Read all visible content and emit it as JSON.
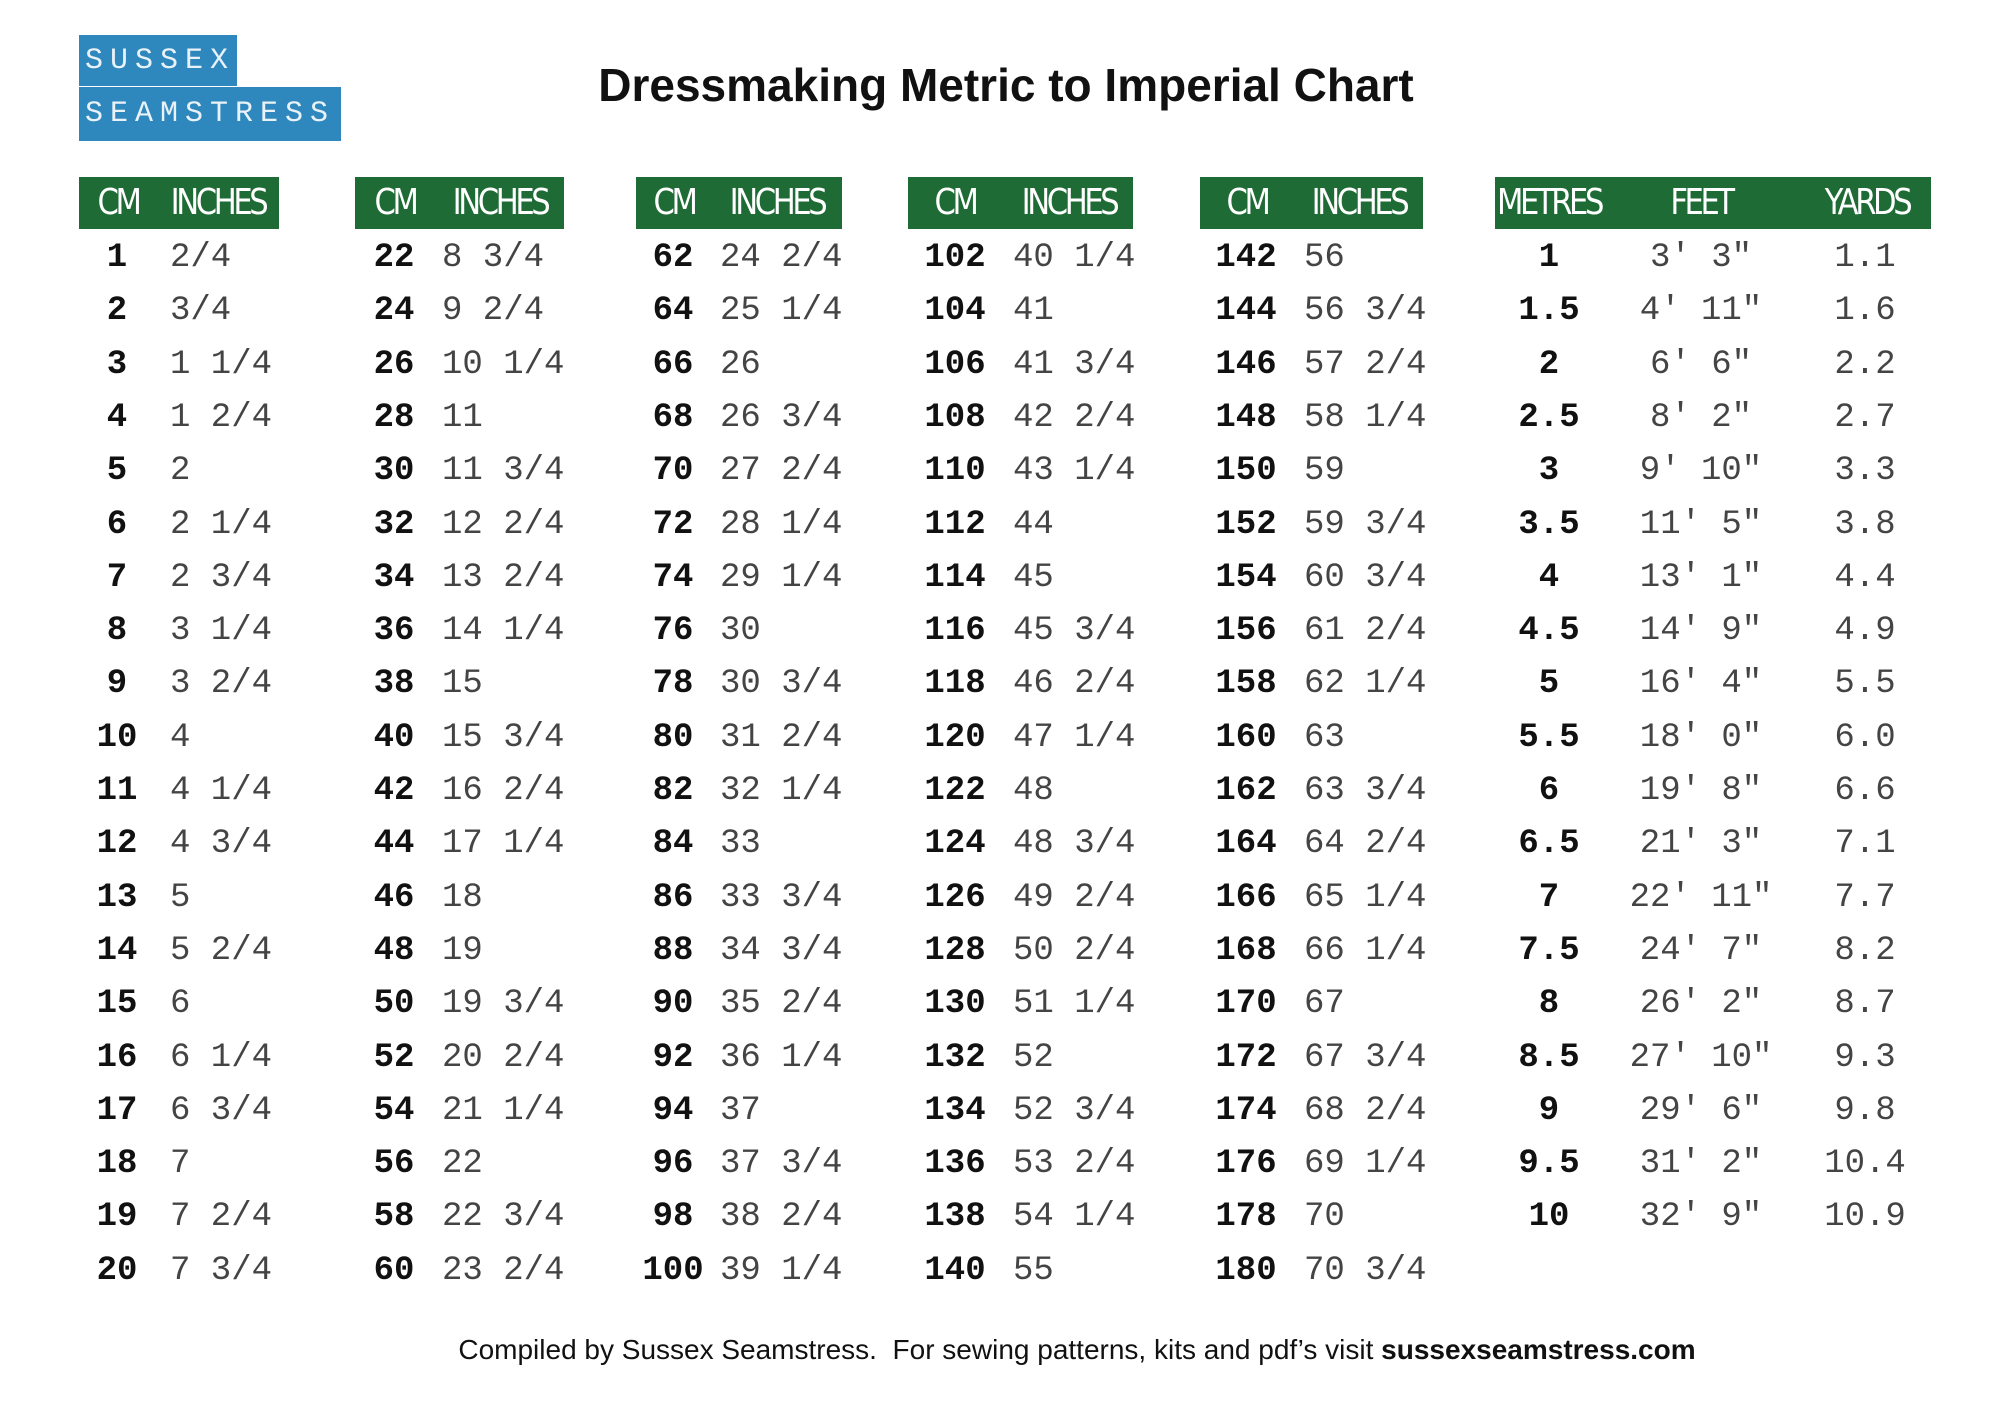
{
  "logo": {
    "line1": "SUSSEX",
    "line2": "SEAMSTRESS"
  },
  "title": "Dressmaking Metric to Imperial Chart",
  "tables": [
    {
      "headers": [
        "CM",
        "INCHES"
      ],
      "rows": [
        [
          "1",
          "2/4"
        ],
        [
          "2",
          "3/4"
        ],
        [
          "3",
          "1 1/4"
        ],
        [
          "4",
          "1 2/4"
        ],
        [
          "5",
          "2"
        ],
        [
          "6",
          "2 1/4"
        ],
        [
          "7",
          "2 3/4"
        ],
        [
          "8",
          "3 1/4"
        ],
        [
          "9",
          "3 2/4"
        ],
        [
          "10",
          "4"
        ],
        [
          "11",
          "4 1/4"
        ],
        [
          "12",
          "4 3/4"
        ],
        [
          "13",
          "5"
        ],
        [
          "14",
          "5 2/4"
        ],
        [
          "15",
          "6"
        ],
        [
          "16",
          "6 1/4"
        ],
        [
          "17",
          "6 3/4"
        ],
        [
          "18",
          "7"
        ],
        [
          "19",
          "7 2/4"
        ],
        [
          "20",
          "7 3/4"
        ]
      ]
    },
    {
      "headers": [
        "CM",
        "INCHES"
      ],
      "rows": [
        [
          "22",
          "8 3/4"
        ],
        [
          "24",
          "9 2/4"
        ],
        [
          "26",
          "10 1/4"
        ],
        [
          "28",
          "11"
        ],
        [
          "30",
          "11 3/4"
        ],
        [
          "32",
          "12 2/4"
        ],
        [
          "34",
          "13 2/4"
        ],
        [
          "36",
          "14 1/4"
        ],
        [
          "38",
          "15"
        ],
        [
          "40",
          "15 3/4"
        ],
        [
          "42",
          "16 2/4"
        ],
        [
          "44",
          "17 1/4"
        ],
        [
          "46",
          "18"
        ],
        [
          "48",
          "19"
        ],
        [
          "50",
          "19 3/4"
        ],
        [
          "52",
          "20 2/4"
        ],
        [
          "54",
          "21 1/4"
        ],
        [
          "56",
          "22"
        ],
        [
          "58",
          "22 3/4"
        ],
        [
          "60",
          "23 2/4"
        ]
      ]
    },
    {
      "headers": [
        "CM",
        "INCHES"
      ],
      "rows": [
        [
          "62",
          "24 2/4"
        ],
        [
          "64",
          "25 1/4"
        ],
        [
          "66",
          "26"
        ],
        [
          "68",
          "26 3/4"
        ],
        [
          "70",
          "27 2/4"
        ],
        [
          "72",
          "28 1/4"
        ],
        [
          "74",
          "29 1/4"
        ],
        [
          "76",
          "30"
        ],
        [
          "78",
          "30 3/4"
        ],
        [
          "80",
          "31 2/4"
        ],
        [
          "82",
          "32 1/4"
        ],
        [
          "84",
          "33"
        ],
        [
          "86",
          "33 3/4"
        ],
        [
          "88",
          "34 3/4"
        ],
        [
          "90",
          "35 2/4"
        ],
        [
          "92",
          "36 1/4"
        ],
        [
          "94",
          "37"
        ],
        [
          "96",
          "37 3/4"
        ],
        [
          "98",
          "38 2/4"
        ],
        [
          "100",
          "39 1/4"
        ]
      ]
    },
    {
      "headers": [
        "CM",
        "INCHES"
      ],
      "rows": [
        [
          "102",
          "40 1/4"
        ],
        [
          "104",
          "41"
        ],
        [
          "106",
          "41 3/4"
        ],
        [
          "108",
          "42 2/4"
        ],
        [
          "110",
          "43 1/4"
        ],
        [
          "112",
          "44"
        ],
        [
          "114",
          "45"
        ],
        [
          "116",
          "45 3/4"
        ],
        [
          "118",
          "46 2/4"
        ],
        [
          "120",
          "47 1/4"
        ],
        [
          "122",
          "48"
        ],
        [
          "124",
          "48 3/4"
        ],
        [
          "126",
          "49 2/4"
        ],
        [
          "128",
          "50 2/4"
        ],
        [
          "130",
          "51 1/4"
        ],
        [
          "132",
          "52"
        ],
        [
          "134",
          "52 3/4"
        ],
        [
          "136",
          "53 2/4"
        ],
        [
          "138",
          "54 1/4"
        ],
        [
          "140",
          "55"
        ]
      ]
    },
    {
      "headers": [
        "CM",
        "INCHES"
      ],
      "rows": [
        [
          "142",
          "56"
        ],
        [
          "144",
          "56 3/4"
        ],
        [
          "146",
          "57 2/4"
        ],
        [
          "148",
          "58 1/4"
        ],
        [
          "150",
          "59"
        ],
        [
          "152",
          "59 3/4"
        ],
        [
          "154",
          "60 3/4"
        ],
        [
          "156",
          "61 2/4"
        ],
        [
          "158",
          "62 1/4"
        ],
        [
          "160",
          "63"
        ],
        [
          "162",
          "63 3/4"
        ],
        [
          "164",
          "64 2/4"
        ],
        [
          "166",
          "65 1/4"
        ],
        [
          "168",
          "66 1/4"
        ],
        [
          "170",
          "67"
        ],
        [
          "172",
          "67 3/4"
        ],
        [
          "174",
          "68 2/4"
        ],
        [
          "176",
          "69 1/4"
        ],
        [
          "178",
          "70"
        ],
        [
          "180",
          "70 3/4"
        ]
      ]
    },
    {
      "headers": [
        "METRES",
        "FEET",
        "YARDS"
      ],
      "rows": [
        [
          "1",
          "3' 3\"",
          "1.1"
        ],
        [
          "1.5",
          "4' 11\"",
          "1.6"
        ],
        [
          "2",
          "6' 6\"",
          "2.2"
        ],
        [
          "2.5",
          "8' 2\"",
          "2.7"
        ],
        [
          "3",
          "9' 10\"",
          "3.3"
        ],
        [
          "3.5",
          "11' 5\"",
          "3.8"
        ],
        [
          "4",
          "13' 1\"",
          "4.4"
        ],
        [
          "4.5",
          "14' 9\"",
          "4.9"
        ],
        [
          "5",
          "16' 4\"",
          "5.5"
        ],
        [
          "5.5",
          "18' 0\"",
          "6.0"
        ],
        [
          "6",
          "19' 8\"",
          "6.6"
        ],
        [
          "6.5",
          "21' 3\"",
          "7.1"
        ],
        [
          "7",
          "22' 11\"",
          "7.7"
        ],
        [
          "7.5",
          "24' 7\"",
          "8.2"
        ],
        [
          "8",
          "26' 2\"",
          "8.7"
        ],
        [
          "8.5",
          "27' 10\"",
          "9.3"
        ],
        [
          "9",
          "29' 6\"",
          "9.8"
        ],
        [
          "9.5",
          "31' 2\"",
          "10.4"
        ],
        [
          "10",
          "32' 9\"",
          "10.9"
        ]
      ]
    }
  ],
  "footer": {
    "text": "Compiled by Sussex Seamstress.  For sewing patterns, kits and pdf’s visit ",
    "link": "sussexseamstress.com"
  }
}
